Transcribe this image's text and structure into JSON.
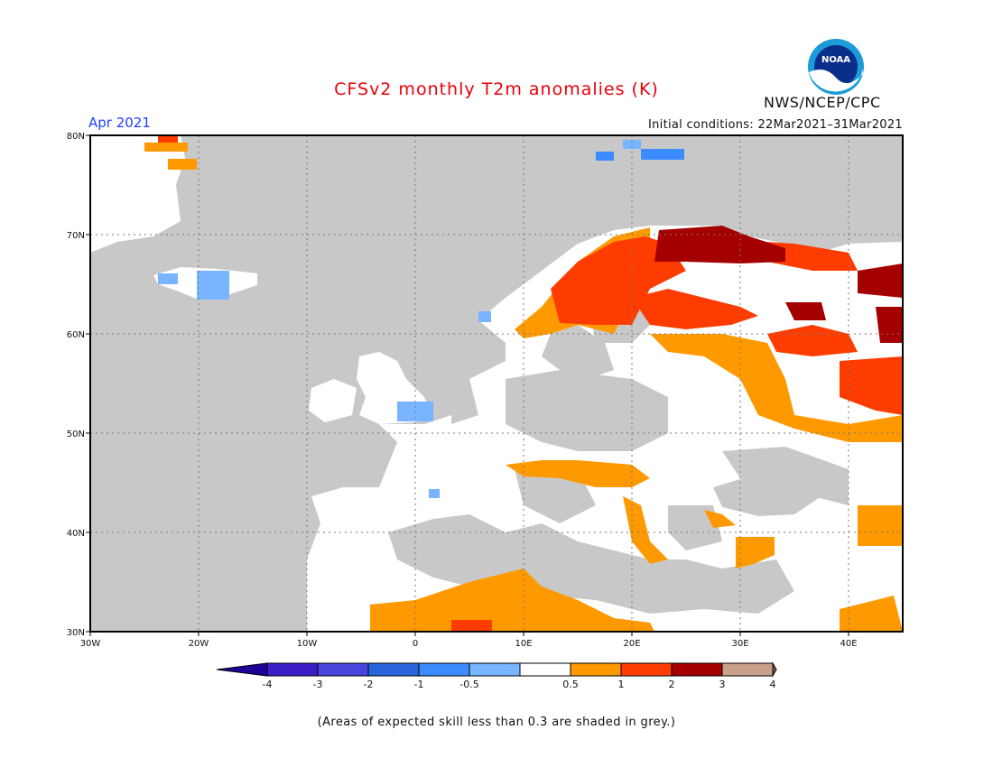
{
  "header": {
    "title": "CFSv2 monthly T2m anomalies (K)",
    "month": "Apr 2021",
    "initial_conditions": "Initial conditions: 22Mar2021–31Mar2021",
    "agency": "NWS/NCEP/CPC",
    "logo_text": "NOAA"
  },
  "map": {
    "lat_labels": [
      "80N",
      "70N",
      "60N",
      "50N",
      "40N",
      "30N"
    ],
    "lon_labels": [
      "30W",
      "20W",
      "10W",
      "0",
      "10E",
      "20E",
      "30E",
      "40E"
    ],
    "colors": {
      "grey_low_skill": "#c8c8c8",
      "ocean_grey": "#c8c8c8",
      "neutral": "#ffffff",
      "orange": "#ff9900",
      "red": "#ff3c00",
      "dark_red": "#a50000",
      "light_blue": "#78b4ff",
      "blue": "#3c8cff"
    }
  },
  "colorbar": {
    "labels": [
      "-4",
      "-3",
      "-2",
      "-1",
      "-0.5",
      "0.5",
      "1",
      "2",
      "3",
      "4"
    ],
    "colors": [
      "#3c1ec8",
      "#4646dc",
      "#2864dc",
      "#3c8cff",
      "#78b4ff",
      "#ffffff",
      "#ff9900",
      "#ff3c00",
      "#a50000",
      "#c8a08c"
    ],
    "end_colors": [
      "#1e0096",
      "#7d5545"
    ]
  },
  "footnote": "(Areas of expected skill less than 0.3 are shaded in grey.)"
}
